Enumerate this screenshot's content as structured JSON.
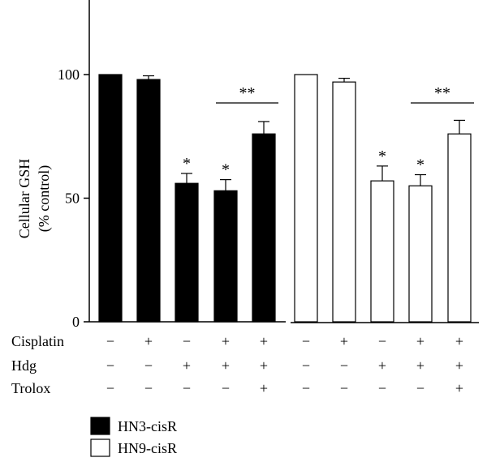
{
  "chart_data": {
    "type": "bar",
    "ylabel": [
      "Cellular GSH",
      "(% control)"
    ],
    "ylim": [
      0,
      130
    ],
    "yticks": [
      0,
      50,
      100
    ],
    "groups": [
      {
        "name": "HN3-cisR",
        "fill": "#000000",
        "values": [
          100,
          98,
          56,
          53,
          76
        ],
        "errors": [
          0,
          1.5,
          4,
          4.5,
          5
        ],
        "annotations": [
          "",
          "",
          "*",
          "*",
          ""
        ],
        "bracket": {
          "from": 3,
          "to": 4,
          "label": "**"
        }
      },
      {
        "name": "HN9-cisR",
        "fill": "#ffffff",
        "values": [
          100,
          97,
          57,
          55,
          76
        ],
        "errors": [
          0,
          1.5,
          6,
          4.5,
          5.5
        ],
        "annotations": [
          "",
          "",
          "*",
          "*",
          ""
        ],
        "bracket": {
          "from": 3,
          "to": 4,
          "label": "**"
        }
      }
    ],
    "conditions": [
      {
        "label": "Cisplatin",
        "marks": [
          "−",
          "+",
          "−",
          "+",
          "+"
        ]
      },
      {
        "label": "Hdg",
        "marks": [
          "−",
          "−",
          "+",
          "+",
          "+"
        ]
      },
      {
        "label": "Trolox",
        "marks": [
          "−",
          "−",
          "−",
          "−",
          "+"
        ]
      }
    ],
    "legend": [
      {
        "label": "HN3-cisR",
        "fill": "#000000"
      },
      {
        "label": "HN9-cisR",
        "fill": "#ffffff"
      }
    ]
  }
}
